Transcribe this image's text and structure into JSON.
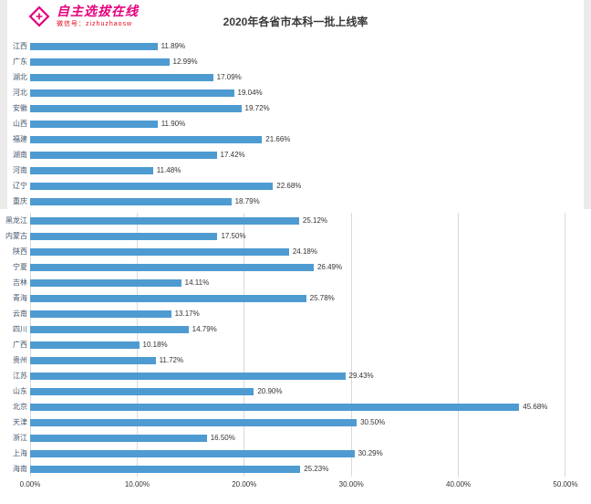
{
  "logo": {
    "title": "自主选拔在线",
    "subtitle": "微信号：zizhuzhaosw",
    "color": "#e5007d"
  },
  "chart_data": {
    "type": "bar",
    "orientation": "horizontal",
    "title": "2020年各省市本科一批上线率",
    "categories": [
      "江西",
      "广东",
      "湖北",
      "河北",
      "安徽",
      "山西",
      "福建",
      "湖南",
      "河南",
      "辽宁",
      "重庆",
      "黑龙江",
      "内蒙古",
      "陕西",
      "宁夏",
      "吉林",
      "青海",
      "云南",
      "四川",
      "广西",
      "贵州",
      "江苏",
      "山东",
      "北京",
      "天津",
      "浙江",
      "上海",
      "海南"
    ],
    "values": [
      11.89,
      12.99,
      17.09,
      19.04,
      19.72,
      11.9,
      21.66,
      17.42,
      11.48,
      22.68,
      18.79,
      25.12,
      17.5,
      24.18,
      26.49,
      14.11,
      25.78,
      13.17,
      14.79,
      10.18,
      11.72,
      29.43,
      20.9,
      45.68,
      30.5,
      16.5,
      30.29,
      25.23
    ],
    "value_labels": [
      "11.89%",
      "12.99%",
      "17.09%",
      "19.04%",
      "19.72%",
      "11.90%",
      "21.66%",
      "17.42%",
      "11.48%",
      "22.68%",
      "18.79%",
      "25.12%",
      "17.50%",
      "24.18%",
      "26.49%",
      "14.11%",
      "25.78%",
      "13.17%",
      "14.79%",
      "10.18%",
      "11.72%",
      "29.43%",
      "20.90%",
      "45.68%",
      "30.50%",
      "16.50%",
      "30.29%",
      "25.23%"
    ],
    "x_ticks": [
      "0.00%",
      "10.00%",
      "20.00%",
      "30.00%",
      "40.00%",
      "50.00%"
    ],
    "xlim": [
      0,
      50
    ],
    "grid": true,
    "legend": "none",
    "bar_color": "#4e9bd2",
    "grid_color": "#d9d9d9",
    "top_section_count": 11
  }
}
